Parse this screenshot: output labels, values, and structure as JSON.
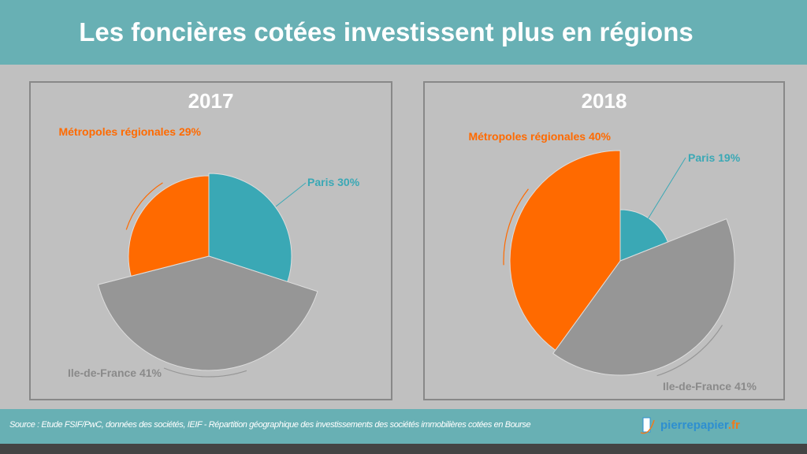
{
  "header": {
    "title": "Les foncières cotées investissent plus en régions"
  },
  "chart_data": [
    {
      "type": "pie",
      "title": "2017",
      "categories": [
        "Paris",
        "Ile-de-France",
        "Métropoles régionales"
      ],
      "values": [
        30,
        41,
        29
      ],
      "labels": [
        "Paris 30%",
        "Ile-de-France 41%",
        "Métropoles régionales 29%"
      ],
      "colors": [
        "#3aa8b5",
        "#969696",
        "#ff6a00"
      ]
    },
    {
      "type": "pie",
      "title": "2018",
      "categories": [
        "Paris",
        "Ile-de-France",
        "Métropoles régionales"
      ],
      "values": [
        19,
        41,
        40
      ],
      "labels": [
        "Paris 19%",
        "Ile-de-France 41%",
        "Métropoles régionales 40%"
      ],
      "colors": [
        "#3aa8b5",
        "#969696",
        "#ff6a00"
      ]
    }
  ],
  "footer": {
    "source": "Source : Etude FSIF/PwC, données des sociétés, IEIF  - Répartition géographique des investissements des sociétés immobilières cotées en Bourse",
    "logo_name": "pierrepapier",
    "logo_tld": ".fr"
  }
}
